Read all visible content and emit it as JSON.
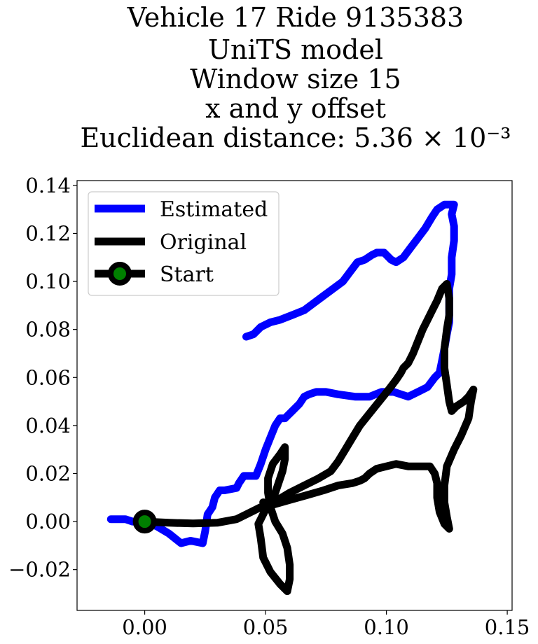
{
  "chart_data": {
    "type": "line",
    "title": [
      "Vehicle 17 Ride 9135383",
      "UniTS model",
      "Window size 15",
      "x and y offset",
      "Euclidean distance: 5.36 × 10⁻³"
    ],
    "xlabel": "",
    "ylabel": "",
    "xlim": [
      -0.028,
      0.152
    ],
    "ylim": [
      -0.037,
      0.142
    ],
    "xticks": [
      {
        "value": 0.0,
        "label": "0.00"
      },
      {
        "value": 0.05,
        "label": "0.05"
      },
      {
        "value": 0.1,
        "label": "0.10"
      },
      {
        "value": 0.15,
        "label": "0.15"
      }
    ],
    "yticks": [
      {
        "value": -0.02,
        "label": "−0.02"
      },
      {
        "value": 0.0,
        "label": "0.00"
      },
      {
        "value": 0.02,
        "label": "0.02"
      },
      {
        "value": 0.04,
        "label": "0.04"
      },
      {
        "value": 0.06,
        "label": "0.06"
      },
      {
        "value": 0.08,
        "label": "0.08"
      },
      {
        "value": 0.1,
        "label": "0.10"
      },
      {
        "value": 0.12,
        "label": "0.12"
      },
      {
        "value": 0.14,
        "label": "0.14"
      }
    ],
    "grid": false,
    "legend_position": "top-left",
    "series": [
      {
        "name": "Estimated",
        "color": "#0000ff",
        "points": [
          [
            -0.014,
            0.001
          ],
          [
            -0.011,
            0.001
          ],
          [
            -0.008,
            0.001
          ],
          [
            -0.005,
            0.0
          ],
          [
            0.0,
            0.0
          ],
          [
            0.005,
            -0.002
          ],
          [
            0.01,
            -0.005
          ],
          [
            0.015,
            -0.009
          ],
          [
            0.019,
            -0.008
          ],
          [
            0.024,
            -0.009
          ],
          [
            0.025,
            -0.004
          ],
          [
            0.026,
            0.003
          ],
          [
            0.028,
            0.006
          ],
          [
            0.029,
            0.01
          ],
          [
            0.031,
            0.013
          ],
          [
            0.033,
            0.013
          ],
          [
            0.038,
            0.014
          ],
          [
            0.039,
            0.016
          ],
          [
            0.041,
            0.019
          ],
          [
            0.046,
            0.019
          ],
          [
            0.048,
            0.024
          ],
          [
            0.05,
            0.03
          ],
          [
            0.052,
            0.035
          ],
          [
            0.054,
            0.04
          ],
          [
            0.056,
            0.043
          ],
          [
            0.058,
            0.043
          ],
          [
            0.061,
            0.046
          ],
          [
            0.064,
            0.049
          ],
          [
            0.066,
            0.052
          ],
          [
            0.068,
            0.053
          ],
          [
            0.071,
            0.054
          ],
          [
            0.075,
            0.054
          ],
          [
            0.08,
            0.053
          ],
          [
            0.087,
            0.052
          ],
          [
            0.093,
            0.052
          ],
          [
            0.098,
            0.054
          ],
          [
            0.103,
            0.054
          ],
          [
            0.106,
            0.053
          ],
          [
            0.109,
            0.052
          ],
          [
            0.113,
            0.054
          ],
          [
            0.117,
            0.056
          ],
          [
            0.12,
            0.06
          ],
          [
            0.122,
            0.062
          ],
          [
            0.123,
            0.067
          ],
          [
            0.124,
            0.072
          ],
          [
            0.125,
            0.078
          ],
          [
            0.126,
            0.083
          ],
          [
            0.126,
            0.09
          ],
          [
            0.126,
            0.097
          ],
          [
            0.127,
            0.103
          ],
          [
            0.127,
            0.11
          ],
          [
            0.128,
            0.117
          ],
          [
            0.128,
            0.123
          ],
          [
            0.127,
            0.128
          ],
          [
            0.128,
            0.132
          ],
          [
            0.124,
            0.132
          ],
          [
            0.121,
            0.13
          ],
          [
            0.119,
            0.127
          ],
          [
            0.116,
            0.122
          ],
          [
            0.113,
            0.118
          ],
          [
            0.11,
            0.114
          ],
          [
            0.107,
            0.11
          ],
          [
            0.104,
            0.108
          ],
          [
            0.102,
            0.109
          ],
          [
            0.099,
            0.112
          ],
          [
            0.096,
            0.112
          ],
          [
            0.094,
            0.111
          ],
          [
            0.091,
            0.109
          ],
          [
            0.088,
            0.108
          ],
          [
            0.085,
            0.104
          ],
          [
            0.082,
            0.1
          ],
          [
            0.078,
            0.097
          ],
          [
            0.074,
            0.094
          ],
          [
            0.07,
            0.091
          ],
          [
            0.066,
            0.088
          ],
          [
            0.061,
            0.086
          ],
          [
            0.056,
            0.084
          ],
          [
            0.052,
            0.083
          ],
          [
            0.048,
            0.081
          ],
          [
            0.045,
            0.078
          ],
          [
            0.042,
            0.077
          ]
        ]
      },
      {
        "name": "Original",
        "color": "#000000",
        "points": [
          [
            0.0,
            0.0
          ],
          [
            0.01,
            -0.0005
          ],
          [
            0.02,
            -0.0008
          ],
          [
            0.03,
            -0.0005
          ],
          [
            0.038,
            0.001
          ],
          [
            0.044,
            0.004
          ],
          [
            0.05,
            0.007
          ],
          [
            0.053,
            0.009
          ],
          [
            0.055,
            0.015
          ],
          [
            0.057,
            0.021
          ],
          [
            0.058,
            0.026
          ],
          [
            0.058,
            0.031
          ],
          [
            0.056,
            0.028
          ],
          [
            0.053,
            0.024
          ],
          [
            0.051,
            0.018
          ],
          [
            0.051,
            0.012
          ],
          [
            0.052,
            0.006
          ],
          [
            0.054,
            0.0
          ],
          [
            0.057,
            -0.005
          ],
          [
            0.059,
            -0.011
          ],
          [
            0.06,
            -0.018
          ],
          [
            0.06,
            -0.024
          ],
          [
            0.059,
            -0.029
          ],
          [
            0.056,
            -0.026
          ],
          [
            0.052,
            -0.021
          ],
          [
            0.049,
            -0.015
          ],
          [
            0.048,
            -0.007
          ],
          [
            0.047,
            -0.001
          ],
          [
            0.05,
            0.005
          ],
          [
            0.055,
            0.009
          ],
          [
            0.06,
            0.012
          ],
          [
            0.066,
            0.015
          ],
          [
            0.072,
            0.018
          ],
          [
            0.077,
            0.021
          ],
          [
            0.08,
            0.025
          ],
          [
            0.083,
            0.03
          ],
          [
            0.086,
            0.035
          ],
          [
            0.089,
            0.04
          ],
          [
            0.093,
            0.045
          ],
          [
            0.097,
            0.05
          ],
          [
            0.101,
            0.055
          ],
          [
            0.104,
            0.059
          ],
          [
            0.106,
            0.062
          ],
          [
            0.107,
            0.064
          ],
          [
            0.109,
            0.066
          ],
          [
            0.111,
            0.07
          ],
          [
            0.113,
            0.075
          ],
          [
            0.115,
            0.08
          ],
          [
            0.117,
            0.084
          ],
          [
            0.119,
            0.088
          ],
          [
            0.121,
            0.092
          ],
          [
            0.123,
            0.097
          ],
          [
            0.125,
            0.099
          ],
          [
            0.126,
            0.093
          ],
          [
            0.126,
            0.086
          ],
          [
            0.125,
            0.08
          ],
          [
            0.124,
            0.072
          ],
          [
            0.124,
            0.064
          ],
          [
            0.125,
            0.057
          ],
          [
            0.126,
            0.05
          ],
          [
            0.127,
            0.046
          ],
          [
            0.129,
            0.048
          ],
          [
            0.132,
            0.05
          ],
          [
            0.134,
            0.052
          ],
          [
            0.136,
            0.055
          ],
          [
            0.135,
            0.05
          ],
          [
            0.134,
            0.043
          ],
          [
            0.131,
            0.036
          ],
          [
            0.128,
            0.03
          ],
          [
            0.125,
            0.023
          ],
          [
            0.124,
            0.015
          ],
          [
            0.124,
            0.008
          ],
          [
            0.125,
            0.002
          ],
          [
            0.126,
            -0.003
          ],
          [
            0.124,
            -0.001
          ],
          [
            0.122,
            0.004
          ],
          [
            0.121,
            0.01
          ],
          [
            0.121,
            0.016
          ],
          [
            0.12,
            0.02
          ],
          [
            0.118,
            0.023
          ],
          [
            0.114,
            0.023
          ],
          [
            0.109,
            0.023
          ],
          [
            0.104,
            0.024
          ],
          [
            0.1,
            0.023
          ],
          [
            0.096,
            0.022
          ],
          [
            0.093,
            0.02
          ],
          [
            0.091,
            0.018
          ],
          [
            0.089,
            0.017
          ],
          [
            0.086,
            0.016
          ],
          [
            0.08,
            0.015
          ],
          [
            0.074,
            0.013
          ],
          [
            0.067,
            0.011
          ],
          [
            0.06,
            0.009
          ],
          [
            0.053,
            0.007
          ],
          [
            0.049,
            0.008
          ]
        ]
      }
    ],
    "start_marker": {
      "name": "Start",
      "x": 0.0,
      "y": 0.0,
      "fill": "#008000",
      "edge": "#000000"
    }
  }
}
